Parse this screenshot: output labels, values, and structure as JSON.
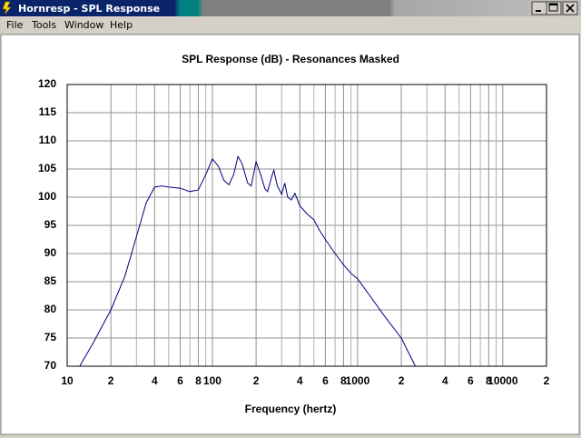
{
  "window": {
    "title": "Hornresp - SPL Response",
    "menu": [
      "File",
      "Tools",
      "Window",
      "Help"
    ]
  },
  "chart_data": {
    "type": "line",
    "title": "SPL Response (dB) - Resonances Masked",
    "x_label": "Frequency (hertz)",
    "x": [
      12.2,
      15,
      20,
      25,
      30,
      35,
      40,
      45,
      50,
      60,
      70,
      80,
      90,
      100,
      110,
      120,
      130,
      140,
      150,
      160,
      175,
      185,
      200,
      215,
      230,
      240,
      255,
      265,
      280,
      300,
      315,
      330,
      350,
      370,
      400,
      450,
      500,
      550,
      600,
      700,
      800,
      900,
      1000,
      1200,
      1500,
      2000,
      2500
    ],
    "values": [
      70,
      74,
      80,
      86,
      93,
      99,
      101.8,
      102,
      101.8,
      101.6,
      101,
      101.3,
      104,
      106.8,
      105.5,
      103,
      102.2,
      104,
      107.2,
      106,
      102.5,
      102,
      106.3,
      104,
      101.5,
      101,
      103.5,
      104.8,
      102,
      100.5,
      102.5,
      100,
      99.5,
      100.7,
      98.5,
      97,
      96,
      94,
      92.5,
      90,
      88,
      86.5,
      85.5,
      82.7,
      79.2,
      75,
      70
    ],
    "color": "#000080",
    "log_x": true,
    "grid": true,
    "xlim": [
      10,
      20000
    ],
    "xticks": [
      10,
      {
        "value": 20,
        "label": "2"
      },
      {
        "value": 40,
        "label": "4"
      },
      {
        "value": 60,
        "label": "6"
      },
      {
        "value": 80,
        "label": "8"
      },
      100,
      {
        "value": 200,
        "label": "2"
      },
      {
        "value": 400,
        "label": "4"
      },
      {
        "value": 600,
        "label": "6"
      },
      {
        "value": 800,
        "label": "8"
      },
      1000,
      {
        "value": 2000,
        "label": "2"
      },
      {
        "value": 4000,
        "label": "4"
      },
      {
        "value": 6000,
        "label": "6"
      },
      {
        "value": 8000,
        "label": "8"
      },
      10000,
      {
        "value": 20000,
        "label": "2"
      }
    ],
    "xminor_ticks": [
      30,
      50,
      70,
      90,
      300,
      500,
      700,
      900,
      3000,
      5000,
      7000,
      9000
    ],
    "ylim": [
      70,
      120
    ],
    "yticks": [
      70,
      75,
      80,
      85,
      90,
      95,
      100,
      105,
      110,
      115,
      120
    ]
  }
}
